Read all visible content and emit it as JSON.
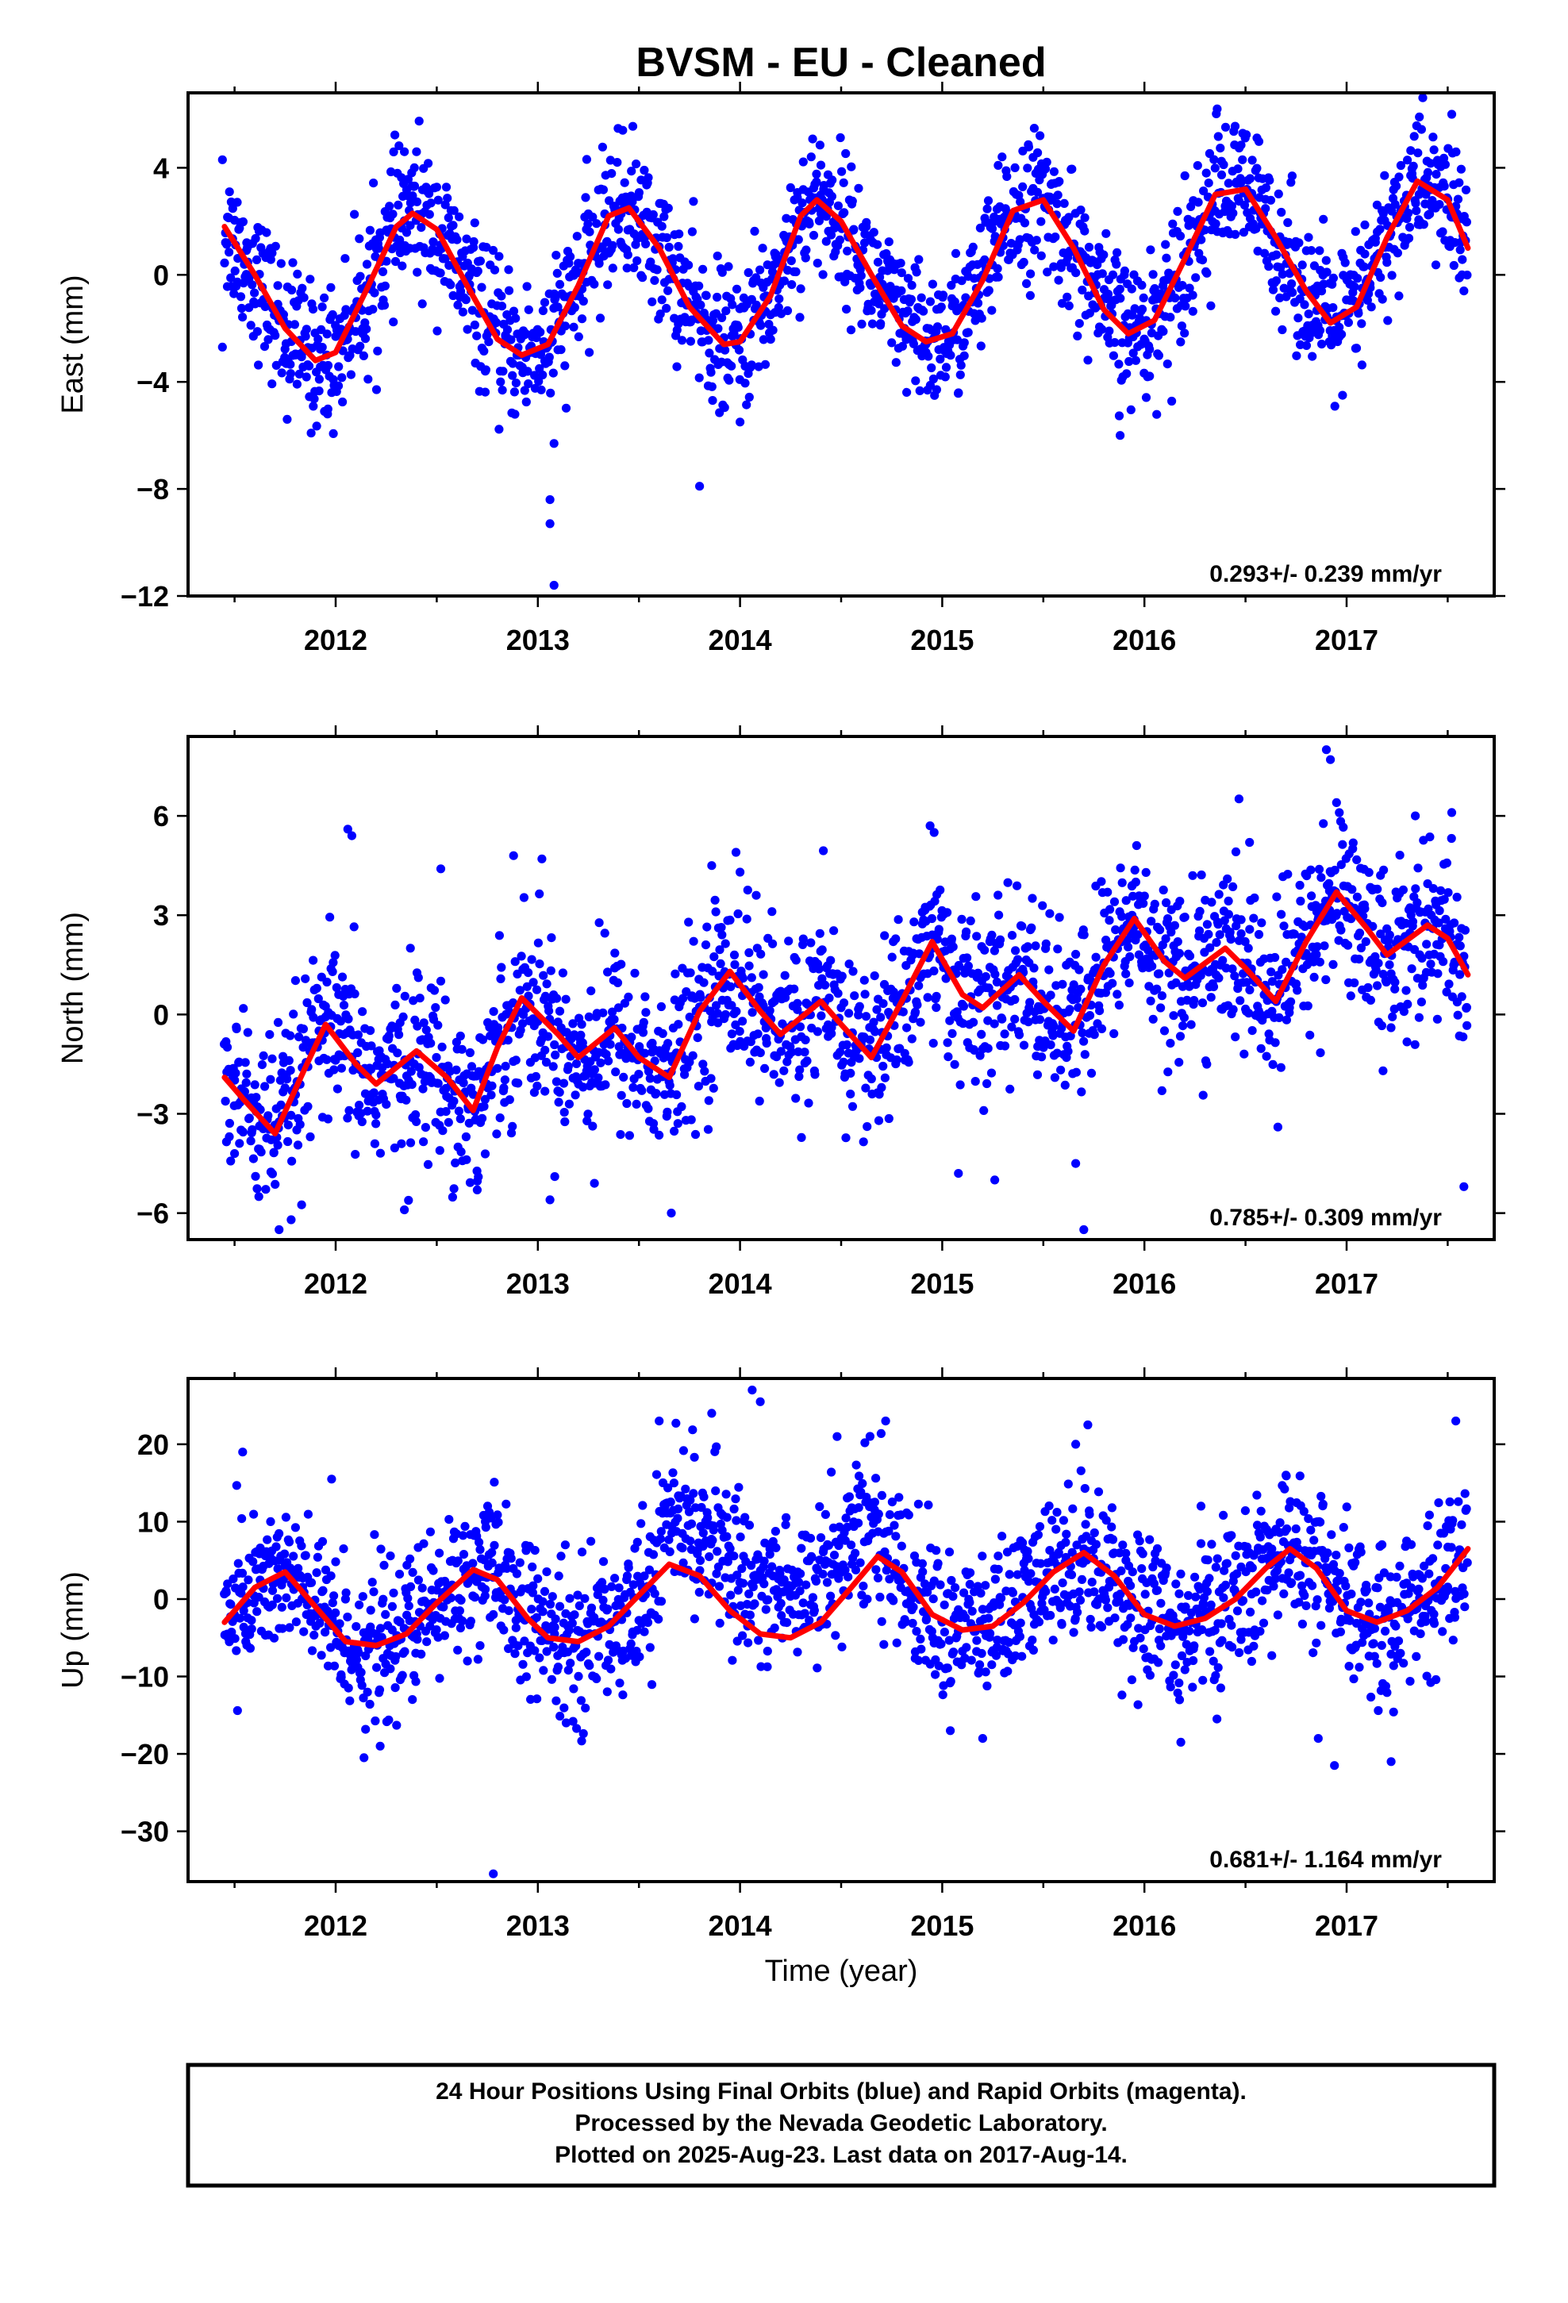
{
  "title": "BVSM  - EU - Cleaned",
  "xlabel": "Time (year)",
  "footer": {
    "line1": "24 Hour Positions Using Final Orbits (blue) and Rapid Orbits (magenta).",
    "line2": "Processed by the Nevada Geodetic Laboratory.",
    "line3": "Plotted on 2025-Aug-23. Last data on 2017-Aug-14."
  },
  "colors": {
    "points": "#0000ff",
    "fit": "#ff0000",
    "frame": "#000000"
  },
  "chart_data": [
    {
      "type": "scatter",
      "ylabel": "East (mm)",
      "rate_label": "0.293+/- 0.239 mm/yr",
      "xlim": [
        2011.27,
        2017.73
      ],
      "ylim": [
        -12,
        6.8
      ],
      "xticks": [
        "2012",
        "2013",
        "2014",
        "2015",
        "2016",
        "2017"
      ],
      "yticks": [
        "4",
        "0",
        "−4",
        "−8",
        "−12"
      ],
      "ytick_values": [
        4,
        0,
        -4,
        -8,
        -12
      ],
      "grid": false,
      "series": [
        {
          "kind": "fit",
          "x": [
            2011.45,
            2011.6,
            2011.75,
            2011.9,
            2012.0,
            2012.15,
            2012.3,
            2012.38,
            2012.5,
            2012.65,
            2012.8,
            2012.92,
            2013.05,
            2013.2,
            2013.35,
            2013.45,
            2013.6,
            2013.75,
            2013.92,
            2014.0,
            2014.15,
            2014.3,
            2014.38,
            2014.5,
            2014.65,
            2014.8,
            2014.92,
            2015.05,
            2015.2,
            2015.35,
            2015.5,
            2015.65,
            2015.8,
            2015.92,
            2016.05,
            2016.2,
            2016.35,
            2016.5,
            2016.65,
            2016.8,
            2016.92,
            2017.05,
            2017.2,
            2017.35,
            2017.5,
            2017.6
          ],
          "y": [
            1.8,
            0.0,
            -2.0,
            -3.2,
            -2.9,
            -0.6,
            1.8,
            2.3,
            1.7,
            -0.4,
            -2.4,
            -3.0,
            -2.6,
            -0.4,
            2.2,
            2.5,
            1.0,
            -1.2,
            -2.6,
            -2.5,
            -0.8,
            2.2,
            2.8,
            2.0,
            0.0,
            -1.9,
            -2.5,
            -2.2,
            -0.2,
            2.4,
            2.8,
            1.0,
            -1.3,
            -2.2,
            -1.7,
            0.6,
            3.0,
            3.2,
            1.4,
            -0.6,
            -1.8,
            -1.2,
            1.4,
            3.5,
            2.8,
            1.0
          ]
        },
        {
          "kind": "points",
          "x": [
            2011.44,
            2011.44,
            2011.56,
            2011.76,
            2011.96,
            2012.16,
            2012.34,
            2012.4,
            2012.56,
            2012.74,
            2012.94,
            2013.08,
            2013.06,
            2013.08,
            2013.06,
            2013.24,
            2013.42,
            2013.8,
            2014.0,
            2014.4,
            2014.92,
            2015.36,
            2015.88,
            2016.2,
            2016.36,
            2016.84,
            2016.98,
            2017.36,
            2017.52,
            2017.58
          ],
          "y": [
            4.3,
            -2.7,
            1.2,
            -5.4,
            -5.2,
            -3.9,
            4.6,
            4.6,
            -0.3,
            -3.6,
            -2.2,
            -6.3,
            -9.3,
            -11.6,
            -8.4,
            1.7,
            5.4,
            -7.9,
            -5.5,
            4.1,
            -2.9,
            4.0,
            -6.0,
            3.7,
            6.2,
            -2.0,
            -4.5,
            5.9,
            6.0,
            -0.6
          ],
          "note": "only outliers and representative points listed; dense cloud follows the fit with about 1.5 mm scatter"
        }
      ]
    },
    {
      "type": "scatter",
      "ylabel": "North (mm)",
      "rate_label": "0.785+/- 0.309 mm/yr",
      "xlim": [
        2011.27,
        2017.73
      ],
      "ylim": [
        -6.8,
        8.4
      ],
      "xticks": [
        "2012",
        "2013",
        "2014",
        "2015",
        "2016",
        "2017"
      ],
      "yticks": [
        "6",
        "3",
        "0",
        "−3",
        "−6"
      ],
      "ytick_values": [
        6,
        3,
        0,
        -3,
        -6
      ],
      "grid": false,
      "series": [
        {
          "kind": "fit",
          "x": [
            2011.45,
            2011.55,
            2011.7,
            2011.85,
            2011.95,
            2012.1,
            2012.2,
            2012.4,
            2012.55,
            2012.68,
            2012.8,
            2012.92,
            2013.1,
            2013.2,
            2013.38,
            2013.5,
            2013.65,
            2013.8,
            2013.95,
            2014.1,
            2014.2,
            2014.4,
            2014.5,
            2014.65,
            2014.8,
            2014.95,
            2015.1,
            2015.2,
            2015.38,
            2015.5,
            2015.65,
            2015.8,
            2015.95,
            2016.1,
            2016.2,
            2016.4,
            2016.5,
            2016.65,
            2016.8,
            2016.95,
            2017.1,
            2017.2,
            2017.4,
            2017.5,
            2017.6
          ],
          "y": [
            -1.9,
            -2.6,
            -3.6,
            -1.6,
            -0.3,
            -1.5,
            -2.1,
            -1.1,
            -1.9,
            -2.9,
            -1.0,
            0.5,
            -0.6,
            -1.3,
            -0.4,
            -1.3,
            -1.9,
            0.1,
            1.3,
            0.1,
            -0.6,
            0.4,
            -0.3,
            -1.3,
            0.4,
            2.2,
            0.6,
            0.2,
            1.2,
            0.4,
            -0.5,
            1.5,
            2.9,
            1.6,
            1.1,
            2.0,
            1.4,
            0.4,
            2.2,
            3.7,
            2.6,
            1.8,
            2.7,
            2.3,
            1.2
          ]
        },
        {
          "kind": "points",
          "x": [
            2011.5,
            2011.62,
            2011.72,
            2011.78,
            2012.06,
            2012.08,
            2012.34,
            2012.52,
            2012.7,
            2012.88,
            2013.02,
            2013.06,
            2013.28,
            2013.66,
            2013.86,
            2013.98,
            2014.0,
            2014.08,
            2014.94,
            2014.96,
            2015.08,
            2015.26,
            2015.66,
            2015.7,
            2015.94,
            2016.52,
            2016.66,
            2016.9,
            2016.92,
            2016.95,
            2017.18,
            2017.34,
            2017.52,
            2017.58
          ],
          "y": [
            -4.2,
            -5.5,
            -6.5,
            -6.2,
            5.6,
            5.4,
            -5.9,
            4.4,
            -5.3,
            4.8,
            4.7,
            -5.6,
            -5.1,
            -6.0,
            4.5,
            4.9,
            4.3,
            3.6,
            5.7,
            5.5,
            -4.8,
            -5.0,
            -4.5,
            -6.5,
            3.9,
            5.2,
            -3.4,
            8.0,
            7.7,
            6.4,
            -1.7,
            6.0,
            6.1,
            -5.2
          ],
          "note": "only outliers and representative points listed; dense cloud follows the fit with about 1.4 mm scatter"
        }
      ]
    },
    {
      "type": "scatter",
      "ylabel": "Up (mm)",
      "rate_label": "0.681+/- 1.164 mm/yr",
      "xlim": [
        2011.27,
        2017.73
      ],
      "ylim": [
        -36.5,
        28.5
      ],
      "xticks": [
        "2012",
        "2013",
        "2014",
        "2015",
        "2016",
        "2017"
      ],
      "yticks": [
        "20",
        "10",
        "0",
        "−10",
        "−20",
        "−30"
      ],
      "ytick_values": [
        20,
        10,
        0,
        -10,
        -20,
        -30
      ],
      "grid": false,
      "series": [
        {
          "kind": "fit",
          "x": [
            2011.45,
            2011.6,
            2011.75,
            2011.9,
            2012.05,
            2012.2,
            2012.35,
            2012.5,
            2012.68,
            2012.8,
            2012.95,
            2013.05,
            2013.2,
            2013.35,
            2013.5,
            2013.65,
            2013.8,
            2013.95,
            2014.1,
            2014.25,
            2014.4,
            2014.55,
            2014.68,
            2014.8,
            2014.95,
            2015.1,
            2015.25,
            2015.4,
            2015.55,
            2015.7,
            2015.85,
            2016.0,
            2016.15,
            2016.3,
            2016.45,
            2016.6,
            2016.72,
            2016.85,
            2017.0,
            2017.15,
            2017.3,
            2017.45,
            2017.6
          ],
          "y": [
            -3.0,
            1.5,
            3.5,
            -1.0,
            -5.5,
            -6.0,
            -4.5,
            -0.5,
            3.8,
            2.5,
            -2.5,
            -5.0,
            -5.5,
            -3.5,
            0.5,
            4.5,
            3.0,
            -1.5,
            -4.5,
            -5.0,
            -3.0,
            1.5,
            5.5,
            3.5,
            -2.0,
            -4.0,
            -3.5,
            -0.5,
            3.5,
            6.0,
            3.0,
            -2.0,
            -3.5,
            -2.5,
            0.0,
            4.0,
            6.5,
            4.0,
            -1.5,
            -3.0,
            -1.5,
            1.5,
            6.5
          ]
        },
        {
          "kind": "points",
          "x": [
            2011.54,
            2011.98,
            2012.14,
            2012.22,
            2012.78,
            2012.74,
            2013.14,
            2013.6,
            2013.86,
            2014.06,
            2014.1,
            2014.48,
            2014.72,
            2015.04,
            2015.2,
            2015.66,
            2015.72,
            2016.18,
            2016.28,
            2016.7,
            2016.86,
            2016.94,
            2017.22,
            2017.54
          ],
          "y": [
            19.0,
            15.5,
            -20.5,
            -19.0,
            -35.5,
            10.0,
            -16.0,
            23.0,
            24.0,
            27.0,
            25.5,
            21.0,
            23.0,
            -17.0,
            -18.0,
            20.0,
            22.5,
            -18.5,
            12.0,
            16.0,
            -18.0,
            -21.5,
            -21.0,
            23.0
          ],
          "note": "only outliers and representative points listed; dense cloud follows the fit with about 5 mm scatter"
        }
      ]
    }
  ]
}
